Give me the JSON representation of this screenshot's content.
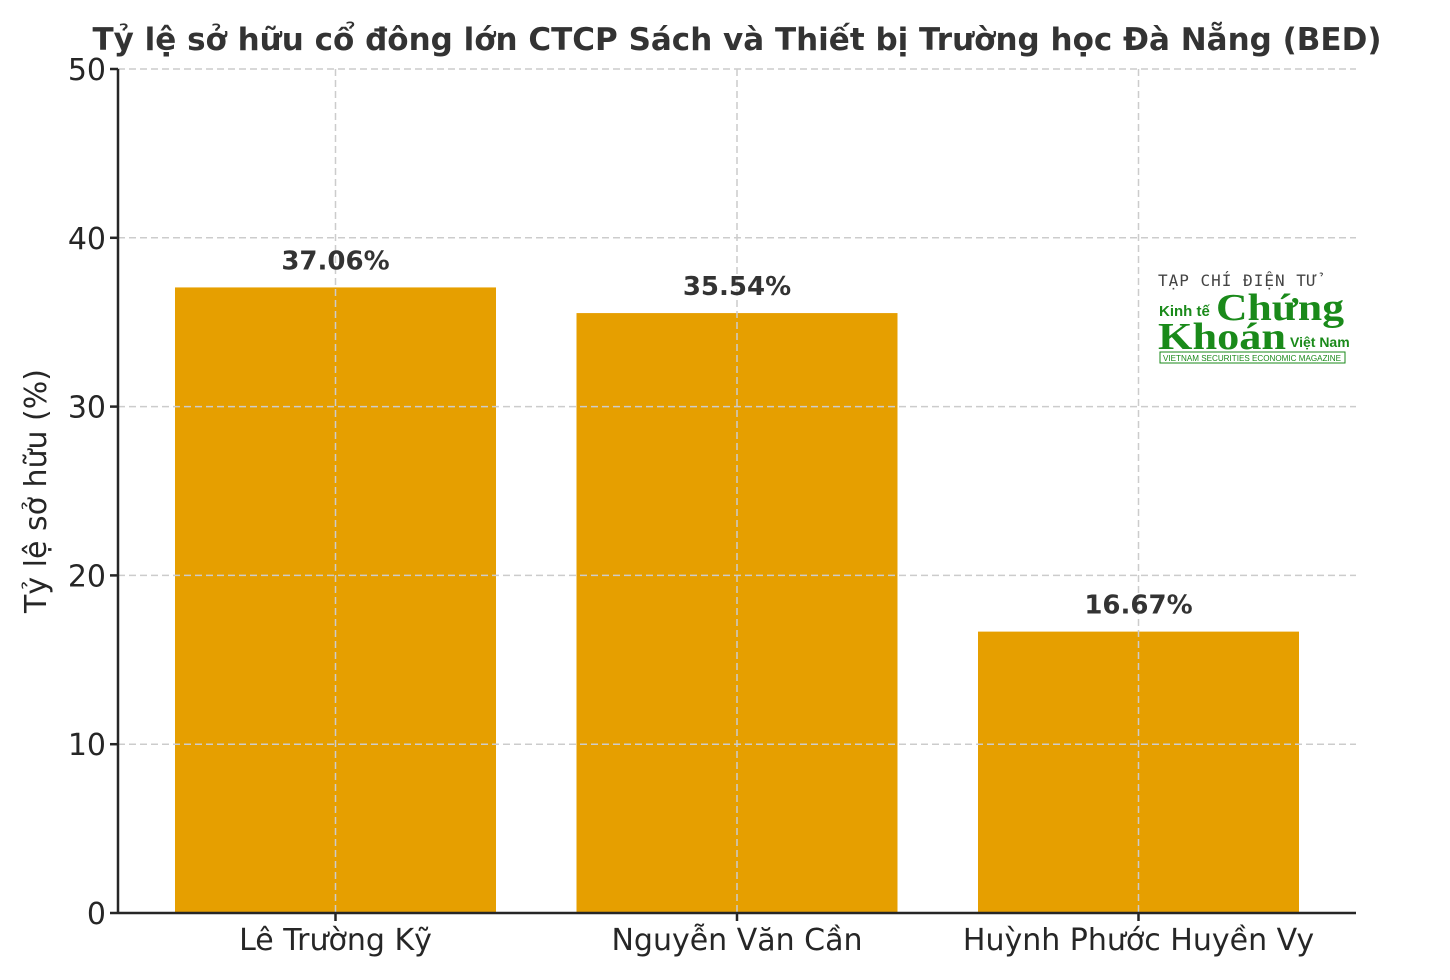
{
  "chart_data": {
    "type": "bar",
    "title": "Tỷ lệ sở hữu cổ đông lớn CTCP Sách và Thiết bị Trường học Đà Nẵng (BED)",
    "xlabel": "",
    "ylabel": "Tỷ lệ sở hữu (%)",
    "categories": [
      "Lê Trường Kỹ",
      "Nguyễn Văn Cần",
      "Huỳnh Phước Huyền Vy"
    ],
    "values": [
      37.06,
      35.54,
      16.67
    ],
    "value_labels": [
      "37.06%",
      "35.54%",
      "16.67%"
    ],
    "ylim": [
      0,
      50
    ],
    "yticks": [
      0,
      10,
      20,
      30,
      40,
      50
    ],
    "ytick_labels": [
      "0",
      "10",
      "20",
      "30",
      "40",
      "50"
    ],
    "grid": true,
    "legend": null,
    "bar_color": "#E69F00"
  },
  "watermark": {
    "line1": "TẠP CHÍ ĐIỆN TỬ",
    "kinh_te": "Kinh tế",
    "chung": "Chứng",
    "khoan": "Khoán",
    "viet_nam": "Việt Nam",
    "tagline": "VIETNAM SECURITIES ECONOMIC MAGAZINE",
    "color": "#1a8a1a"
  }
}
